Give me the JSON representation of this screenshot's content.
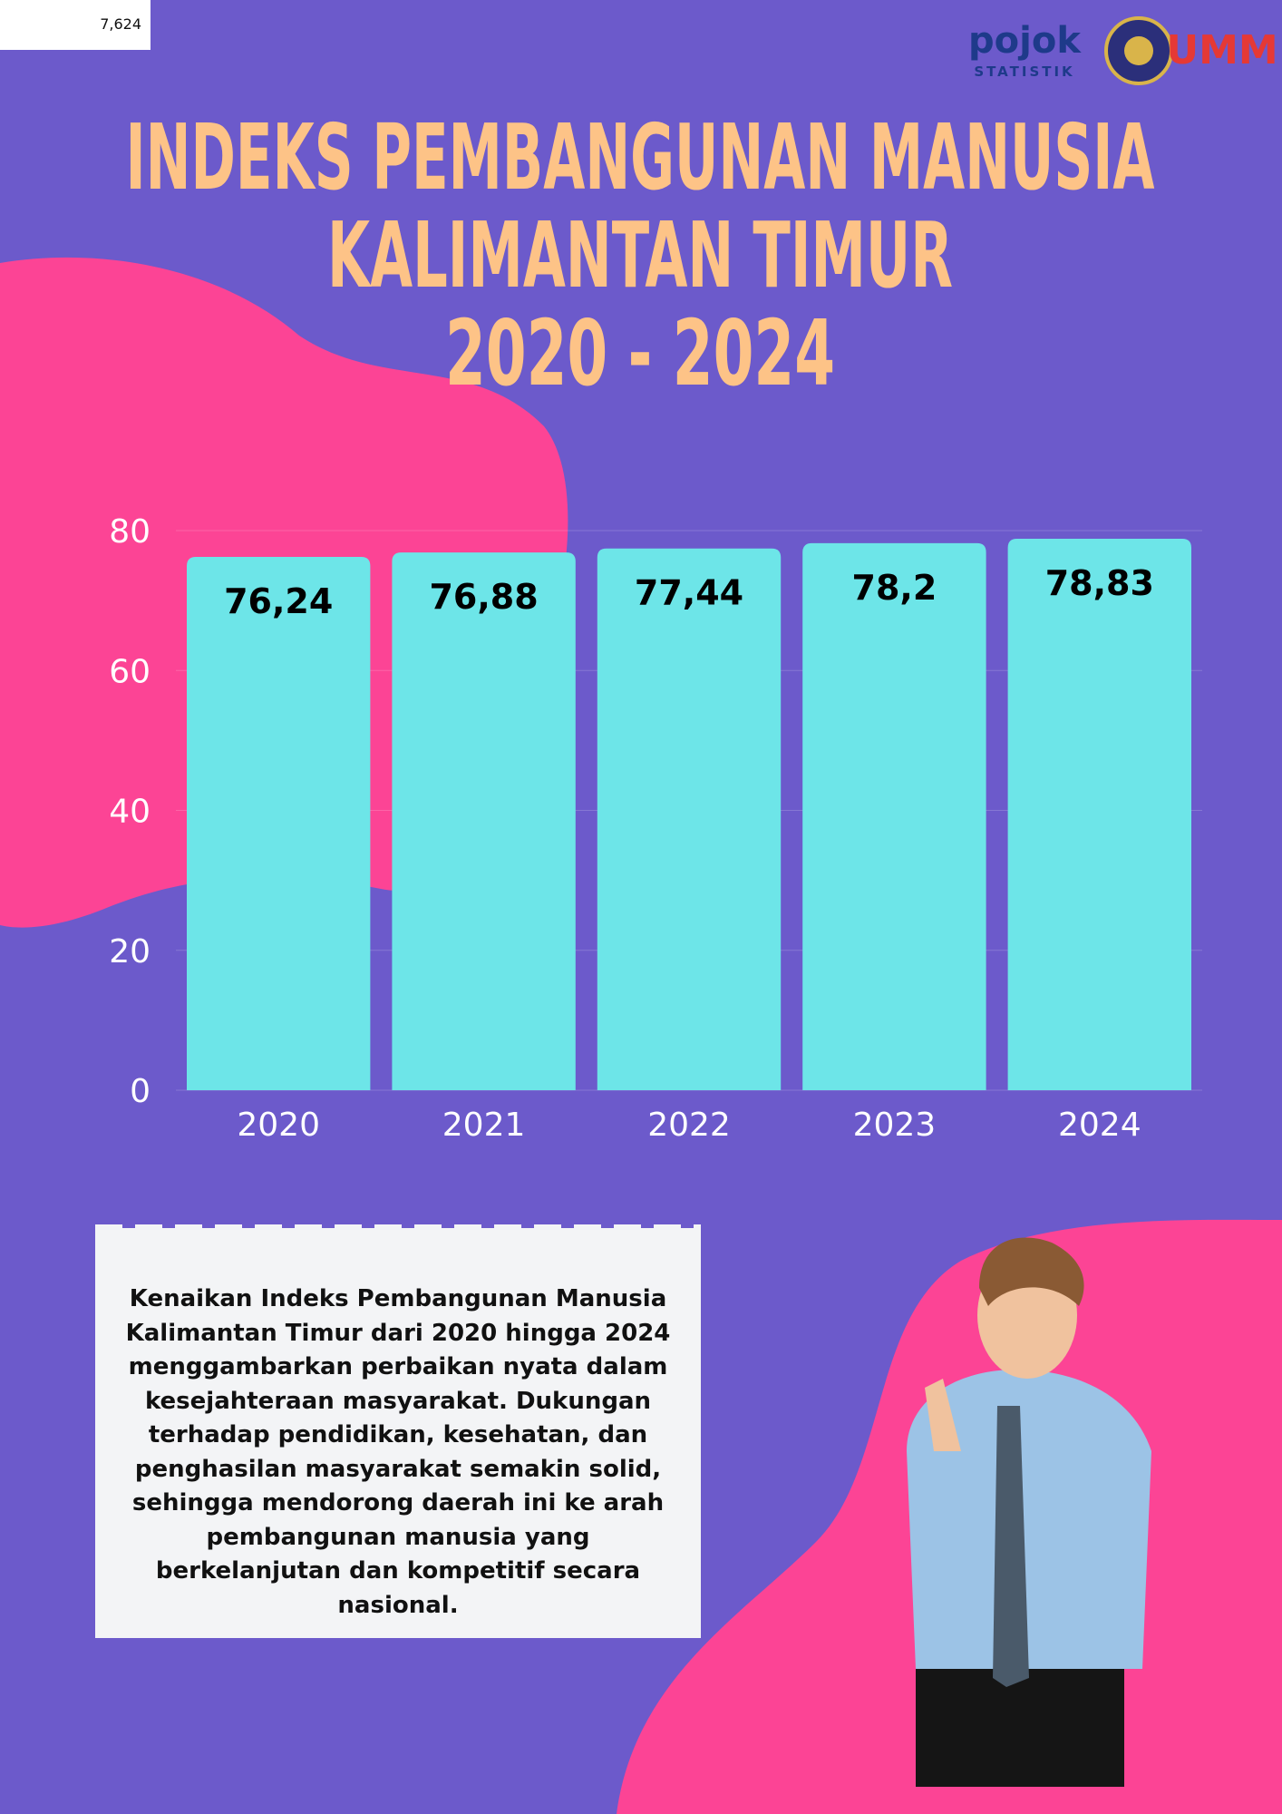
{
  "badge": "7,624",
  "logos": {
    "pojok": "pojok",
    "statistik": "STATISTIK",
    "umm": "UMM"
  },
  "chart_data": {
    "type": "bar",
    "title": [
      "INDEKS PEMBANGUNAN MANUSIA",
      "KALIMANTAN TIMUR",
      "2020 - 2024"
    ],
    "categories": [
      "2020",
      "2021",
      "2022",
      "2023",
      "2024"
    ],
    "values": [
      76.24,
      76.88,
      77.44,
      78.2,
      78.83
    ],
    "value_labels": [
      "76,24",
      "76,88",
      "77,44",
      "78,2",
      "78,83"
    ],
    "color": "#6de5e8",
    "ylim": [
      0,
      80
    ],
    "yticks": [
      0,
      20,
      40,
      60,
      80
    ],
    "grid": true
  },
  "note": "Kenaikan Indeks Pembangunan Manusia Kalimantan Timur dari 2020 hingga 2024 menggambarkan perbaikan nyata dalam kesejahteraan masyarakat. Dukungan terhadap pendidikan, kesehatan, dan penghasilan masyarakat semakin solid, sehingga mendorong daerah ini ke arah pembangunan manusia yang berkelanjutan dan kompetitif secara nasional."
}
